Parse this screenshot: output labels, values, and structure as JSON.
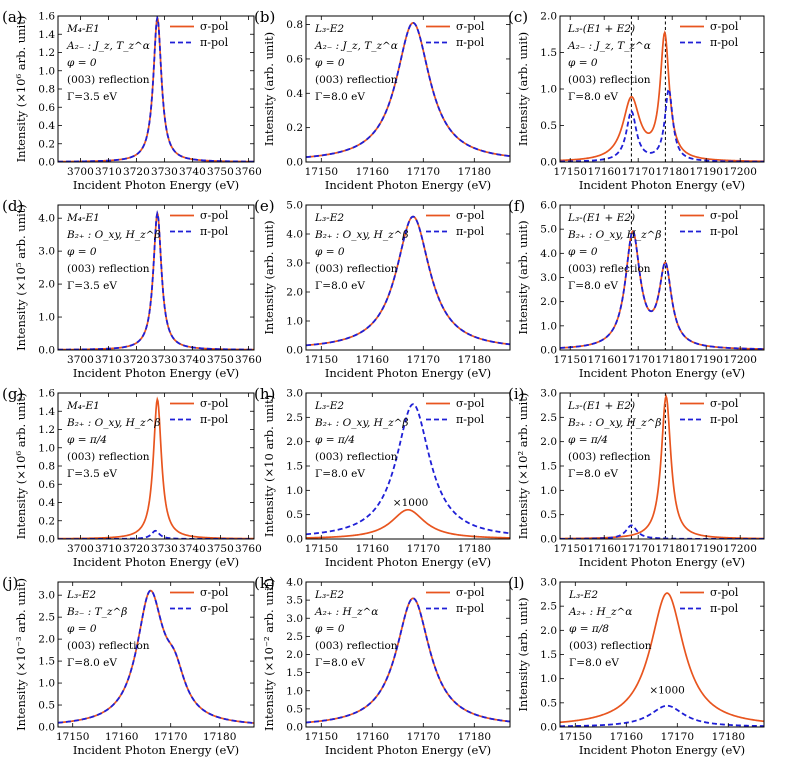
{
  "colors": {
    "sigma": "#e8551f",
    "pi": "#1f1fd6",
    "axis": "#000000"
  },
  "chart_data": [
    {
      "panel": "(a)",
      "type": "line",
      "xlabel": "Incident Photon Energy (eV)",
      "ylabel": "Intensity (×10⁶ arb. unit)",
      "xlim": [
        3692,
        3762
      ],
      "ylim": [
        0,
        1.6
      ],
      "xticks": [
        "3700",
        "3710",
        "3720",
        "3730",
        "3740",
        "3750",
        "3760"
      ],
      "xtick_values": [
        3700,
        3710,
        3720,
        3730,
        3740,
        3750,
        3760
      ],
      "yticks": [
        "0.0",
        "0.2",
        "0.4",
        "0.6",
        "0.8",
        "1.0",
        "1.2",
        "1.4",
        "1.6"
      ],
      "ytick_values": [
        0,
        0.2,
        0.4,
        0.6,
        0.8,
        1.0,
        1.2,
        1.4,
        1.6
      ],
      "annotations": [
        "M₄-E1",
        "A₂₋ : J_z, T_z^α",
        "φ = 0",
        "(003) reflection",
        "Γ=3.5 eV"
      ],
      "legend": [
        "σ-pol",
        "π-pol"
      ],
      "series": [
        {
          "name": "σ-pol",
          "style": "solid",
          "peaks": [
            {
              "center": 3727.5,
              "height": 1.58,
              "width": 1.75
            }
          ]
        },
        {
          "name": "π-pol",
          "style": "dashed",
          "peaks": [
            {
              "center": 3727.5,
              "height": 1.58,
              "width": 1.75
            }
          ]
        }
      ]
    },
    {
      "panel": "(b)",
      "type": "line",
      "xlabel": "Incident Photon Energy (eV)",
      "ylabel": "Intensity (arb. unit)",
      "xlim": [
        17147,
        17187
      ],
      "ylim": [
        0,
        0.85
      ],
      "xticks": [
        "17150",
        "17160",
        "17170",
        "17180"
      ],
      "xtick_values": [
        17150,
        17160,
        17170,
        17180
      ],
      "yticks": [
        "0.0",
        "0.2",
        "0.4",
        "0.6",
        "0.8"
      ],
      "ytick_values": [
        0,
        0.2,
        0.4,
        0.6,
        0.8
      ],
      "annotations": [
        "L₃-E2",
        "A₂₋ : J_z, T_z^α",
        "φ = 0",
        "(003) reflection",
        "Γ=8.0 eV"
      ],
      "legend": [
        "σ-pol",
        "π-pol"
      ],
      "series": [
        {
          "name": "σ-pol",
          "style": "solid",
          "peaks": [
            {
              "center": 17168,
              "height": 0.81,
              "width": 4.0
            }
          ]
        },
        {
          "name": "π-pol",
          "style": "dashed",
          "peaks": [
            {
              "center": 17168,
              "height": 0.81,
              "width": 4.0
            }
          ]
        }
      ]
    },
    {
      "panel": "(c)",
      "type": "line",
      "xlabel": "Incident Photon Energy (eV)",
      "ylabel": "Intensity (arb. unit)",
      "xlim": [
        17147,
        17207
      ],
      "ylim": [
        0,
        2.0
      ],
      "xticks": [
        "17150",
        "17160",
        "17170",
        "17180",
        "17190",
        "17200"
      ],
      "xtick_values": [
        17150,
        17160,
        17170,
        17180,
        17190,
        17200
      ],
      "yticks": [
        "0.0",
        "0.5",
        "1.0",
        "1.5",
        "2.0"
      ],
      "ytick_values": [
        0,
        0.5,
        1.0,
        1.5,
        2.0
      ],
      "annotations": [
        "L₃-(E1 + E2)",
        "A₂₋ : J_z, T_z^α",
        "φ = 0",
        "(003) reflection",
        "Γ=8.0 eV"
      ],
      "legend": [
        "σ-pol",
        "π-pol"
      ],
      "vlines": [
        17168,
        17178
      ],
      "series": [
        {
          "name": "σ-pol",
          "style": "solid",
          "peaks": [
            {
              "center": 17168,
              "height": 0.85,
              "width": 3.0
            },
            {
              "center": 17177.8,
              "height": 1.7,
              "width": 1.6
            }
          ]
        },
        {
          "name": "π-pol",
          "style": "dashed",
          "peaks": [
            {
              "center": 17168,
              "height": 0.68,
              "width": 1.8
            },
            {
              "center": 17179,
              "height": 0.98,
              "width": 1.4
            }
          ]
        }
      ]
    },
    {
      "panel": "(d)",
      "type": "line",
      "xlabel": "Incident Photon Energy (eV)",
      "ylabel": "Intensity (×10⁵ arb. unit)",
      "xlim": [
        3692,
        3762
      ],
      "ylim": [
        0,
        4.4
      ],
      "xticks": [
        "3700",
        "3710",
        "3720",
        "3730",
        "3740",
        "3750",
        "3760"
      ],
      "xtick_values": [
        3700,
        3710,
        3720,
        3730,
        3740,
        3750,
        3760
      ],
      "yticks": [
        "0.0",
        "1.0",
        "2.0",
        "3.0",
        "4.0"
      ],
      "ytick_values": [
        0,
        1,
        2,
        3,
        4
      ],
      "annotations": [
        "M₄-E1",
        "B₂₊ : O_xy, H_z^β",
        "φ = 0",
        "(003) reflection",
        "Γ=3.5 eV"
      ],
      "legend": [
        "σ-pol",
        "π-pol"
      ],
      "series": [
        {
          "name": "σ-pol",
          "style": "solid",
          "peaks": [
            {
              "center": 3727.5,
              "height": 4.15,
              "width": 1.75
            }
          ]
        },
        {
          "name": "π-pol",
          "style": "dashed",
          "peaks": [
            {
              "center": 3727.5,
              "height": 4.15,
              "width": 1.75
            }
          ]
        }
      ]
    },
    {
      "panel": "(e)",
      "type": "line",
      "xlabel": "Incident Photon Energy (eV)",
      "ylabel": "Intensity (arb. unit)",
      "xlim": [
        17147,
        17187
      ],
      "ylim": [
        0,
        5.0
      ],
      "xticks": [
        "17150",
        "17160",
        "17170",
        "17180"
      ],
      "xtick_values": [
        17150,
        17160,
        17170,
        17180
      ],
      "yticks": [
        "0.0",
        "1.0",
        "2.0",
        "3.0",
        "4.0",
        "5.0"
      ],
      "ytick_values": [
        0,
        1,
        2,
        3,
        4,
        5
      ],
      "annotations": [
        "L₃-E2",
        "B₂₊ : O_xy, H_z^β",
        "φ = 0",
        "(003) reflection",
        "Γ=8.0 eV"
      ],
      "legend": [
        "σ-pol",
        "π-pol"
      ],
      "series": [
        {
          "name": "σ-pol",
          "style": "solid",
          "peaks": [
            {
              "center": 17168,
              "height": 4.6,
              "width": 4.0
            }
          ]
        },
        {
          "name": "π-pol",
          "style": "dashed",
          "peaks": [
            {
              "center": 17168,
              "height": 4.6,
              "width": 4.0
            }
          ]
        }
      ]
    },
    {
      "panel": "(f)",
      "type": "line",
      "xlabel": "Incident Photon Energy (eV)",
      "ylabel": "Intensity (arb. unit)",
      "xlim": [
        17147,
        17207
      ],
      "ylim": [
        0,
        6.0
      ],
      "xticks": [
        "17150",
        "17160",
        "17170",
        "17180",
        "17190",
        "17200"
      ],
      "xtick_values": [
        17150,
        17160,
        17170,
        17180,
        17190,
        17200
      ],
      "yticks": [
        "0.0",
        "1.0",
        "2.0",
        "3.0",
        "4.0",
        "5.0",
        "6.0"
      ],
      "ytick_values": [
        0,
        1,
        2,
        3,
        4,
        5,
        6
      ],
      "annotations": [
        "L₃-(E1 + E2)",
        "B₂₊ : O_xy, H_z^β",
        "φ = 0",
        "(003) reflection",
        "Γ=8.0 eV"
      ],
      "legend": [
        "σ-pol",
        "π-pol"
      ],
      "vlines": [
        17168,
        17178
      ],
      "series": [
        {
          "name": "σ-pol",
          "style": "solid",
          "peaks": [
            {
              "center": 17168.4,
              "height": 4.75,
              "width": 2.6
            },
            {
              "center": 17178,
              "height": 3.3,
              "width": 2.2
            }
          ]
        },
        {
          "name": "π-pol",
          "style": "dashed",
          "peaks": [
            {
              "center": 17168.4,
              "height": 4.75,
              "width": 2.6
            },
            {
              "center": 17178,
              "height": 3.3,
              "width": 2.2
            }
          ]
        }
      ]
    },
    {
      "panel": "(g)",
      "type": "line",
      "xlabel": "Incident Photon Energy (eV)",
      "ylabel": "Intensity (×10⁶ arb. unit)",
      "xlim": [
        3692,
        3762
      ],
      "ylim": [
        0,
        1.6
      ],
      "xticks": [
        "3700",
        "3710",
        "3720",
        "3730",
        "3740",
        "3750",
        "3760"
      ],
      "xtick_values": [
        3700,
        3710,
        3720,
        3730,
        3740,
        3750,
        3760
      ],
      "yticks": [
        "0.0",
        "0.2",
        "0.4",
        "0.6",
        "0.8",
        "1.0",
        "1.2",
        "1.4",
        "1.6"
      ],
      "ytick_values": [
        0,
        0.2,
        0.4,
        0.6,
        0.8,
        1.0,
        1.2,
        1.4,
        1.6
      ],
      "annotations": [
        "M₄-E1",
        "B₂₊ : O_xy, H_z^β",
        "φ = π/4",
        "(003) reflection",
        "Γ=3.5 eV"
      ],
      "legend": [
        "σ-pol",
        "π-pol"
      ],
      "series": [
        {
          "name": "σ-pol",
          "style": "solid",
          "peaks": [
            {
              "center": 3727.5,
              "height": 1.53,
              "width": 1.75
            }
          ]
        },
        {
          "name": "π-pol",
          "style": "dashed",
          "peaks": [
            {
              "center": 3726.8,
              "height": 0.09,
              "width": 1.75
            }
          ]
        }
      ]
    },
    {
      "panel": "(h)",
      "type": "line",
      "xlabel": "Incident Photon Energy (eV)",
      "ylabel": "Intensity (×10 arb. unit)",
      "xlim": [
        17147,
        17187
      ],
      "ylim": [
        0,
        3.0
      ],
      "xticks": [
        "17150",
        "17160",
        "17170",
        "17180"
      ],
      "xtick_values": [
        17150,
        17160,
        17170,
        17180
      ],
      "yticks": [
        "0.0",
        "0.5",
        "1.0",
        "1.5",
        "2.0",
        "2.5",
        "3.0"
      ],
      "ytick_values": [
        0,
        0.5,
        1.0,
        1.5,
        2.0,
        2.5,
        3.0
      ],
      "annotations": [
        "L₃-E2",
        "B₂₊ : O_xy, H_z^β",
        "φ = π/4",
        "(003) reflection",
        "Γ=8.0 eV"
      ],
      "mark": "×1000",
      "legend": [
        "σ-pol",
        "π-pol"
      ],
      "series": [
        {
          "name": "σ-pol",
          "style": "solid",
          "peaks": [
            {
              "center": 17167,
              "height": 0.6,
              "width": 4.0
            }
          ]
        },
        {
          "name": "π-pol",
          "style": "dashed",
          "peaks": [
            {
              "center": 17168,
              "height": 2.77,
              "width": 4.0
            }
          ]
        }
      ]
    },
    {
      "panel": "(i)",
      "type": "line",
      "xlabel": "Incident Photon Energy (eV)",
      "ylabel": "Intensity (×10² arb. unit)",
      "xlim": [
        17147,
        17207
      ],
      "ylim": [
        0,
        3.0
      ],
      "xticks": [
        "17150",
        "17160",
        "17170",
        "17180",
        "17190",
        "17200"
      ],
      "xtick_values": [
        17150,
        17160,
        17170,
        17180,
        17190,
        17200
      ],
      "yticks": [
        "0.0",
        "0.5",
        "1.0",
        "1.5",
        "2.0",
        "2.5",
        "3.0"
      ],
      "ytick_values": [
        0,
        0.5,
        1.0,
        1.5,
        2.0,
        2.5,
        3.0
      ],
      "annotations": [
        "L₃-(E1 + E2)",
        "B₂₊ : O_xy, H_z^β",
        "φ = π/4",
        "(003) reflection",
        "Γ=8.0 eV"
      ],
      "legend": [
        "σ-pol",
        "π-pol"
      ],
      "vlines": [
        17168,
        17178
      ],
      "series": [
        {
          "name": "σ-pol",
          "style": "solid",
          "peaks": [
            {
              "center": 17178.2,
              "height": 2.93,
              "width": 1.7
            }
          ]
        },
        {
          "name": "π-pol",
          "style": "dashed",
          "peaks": [
            {
              "center": 17168,
              "height": 0.28,
              "width": 2.0
            }
          ]
        }
      ]
    },
    {
      "panel": "(j)",
      "type": "line",
      "xlabel": "Incident Photon Energy (eV)",
      "ylabel": "Intensity (×10⁻³ arb. unit)",
      "xlim": [
        17147,
        17187
      ],
      "ylim": [
        0,
        3.3
      ],
      "xticks": [
        "17150",
        "17160",
        "17170",
        "17180"
      ],
      "xtick_values": [
        17150,
        17160,
        17170,
        17180
      ],
      "yticks": [
        "0.0",
        "0.5",
        "1.0",
        "1.5",
        "2.0",
        "2.5",
        "3.0"
      ],
      "ytick_values": [
        0,
        0.5,
        1.0,
        1.5,
        2.0,
        2.5,
        3.0
      ],
      "annotations": [
        "L₃-E2",
        "B₂₋ : T_z^β",
        "φ = 0",
        "(003) reflection",
        "Γ=8.0 eV"
      ],
      "legend": [
        "σ-pol",
        "σ-pol"
      ],
      "series": [
        {
          "name": "σ-pol",
          "style": "solid",
          "peaks": [
            {
              "center": 17165.8,
              "height": 2.92,
              "width": 3.3
            },
            {
              "center": 17170.8,
              "height": 0.85,
              "width": 2.6
            }
          ]
        },
        {
          "name": "σ-pol",
          "style": "dashed",
          "peaks": [
            {
              "center": 17165.8,
              "height": 2.92,
              "width": 3.3
            },
            {
              "center": 17170.8,
              "height": 0.85,
              "width": 2.6
            }
          ]
        }
      ]
    },
    {
      "panel": "(k)",
      "type": "line",
      "xlabel": "Incident Photon Energy (eV)",
      "ylabel": "Intensity (×10⁻² arb. unit)",
      "xlim": [
        17147,
        17187
      ],
      "ylim": [
        0,
        4.0
      ],
      "xticks": [
        "17150",
        "17160",
        "17170",
        "17180"
      ],
      "xtick_values": [
        17150,
        17160,
        17170,
        17180
      ],
      "yticks": [
        "0.0",
        "0.5",
        "1.0",
        "1.5",
        "2.0",
        "2.5",
        "3.0",
        "3.5",
        "4.0"
      ],
      "ytick_values": [
        0,
        0.5,
        1.0,
        1.5,
        2.0,
        2.5,
        3.0,
        3.5,
        4.0
      ],
      "annotations": [
        "L₃-E2",
        "A₂₊ : H_z^α",
        "φ = 0",
        "(003) reflection",
        "Γ=8.0 eV"
      ],
      "legend": [
        "σ-pol",
        "π-pol"
      ],
      "series": [
        {
          "name": "σ-pol",
          "style": "solid",
          "peaks": [
            {
              "center": 17168,
              "height": 3.55,
              "width": 4.0
            }
          ]
        },
        {
          "name": "π-pol",
          "style": "dashed",
          "peaks": [
            {
              "center": 17168,
              "height": 3.55,
              "width": 4.0
            }
          ]
        }
      ]
    },
    {
      "panel": "(l)",
      "type": "line",
      "xlabel": "Incident Photon Energy (eV)",
      "ylabel": "Intensity (arb. unit)",
      "xlim": [
        17147,
        17187
      ],
      "ylim": [
        0,
        3.0
      ],
      "xticks": [
        "17150",
        "17160",
        "17170",
        "17180"
      ],
      "xtick_values": [
        17150,
        17160,
        17170,
        17180
      ],
      "yticks": [
        "0.0",
        "0.5",
        "1.0",
        "1.5",
        "2.0",
        "2.5",
        "3.0"
      ],
      "ytick_values": [
        0,
        0.5,
        1.0,
        1.5,
        2.0,
        2.5,
        3.0
      ],
      "annotations": [
        "L₃-E2",
        "A₂₊ : H_z^α",
        "φ = π/8",
        "(003) reflection",
        "Γ=8.0 eV"
      ],
      "mark": "×1000",
      "legend": [
        "σ-pol",
        "π-pol"
      ],
      "series": [
        {
          "name": "σ-pol",
          "style": "solid",
          "peaks": [
            {
              "center": 17168,
              "height": 2.77,
              "width": 4.0
            }
          ]
        },
        {
          "name": "π-pol",
          "style": "dashed",
          "peaks": [
            {
              "center": 17168,
              "height": 0.44,
              "width": 4.0
            }
          ]
        }
      ]
    }
  ]
}
